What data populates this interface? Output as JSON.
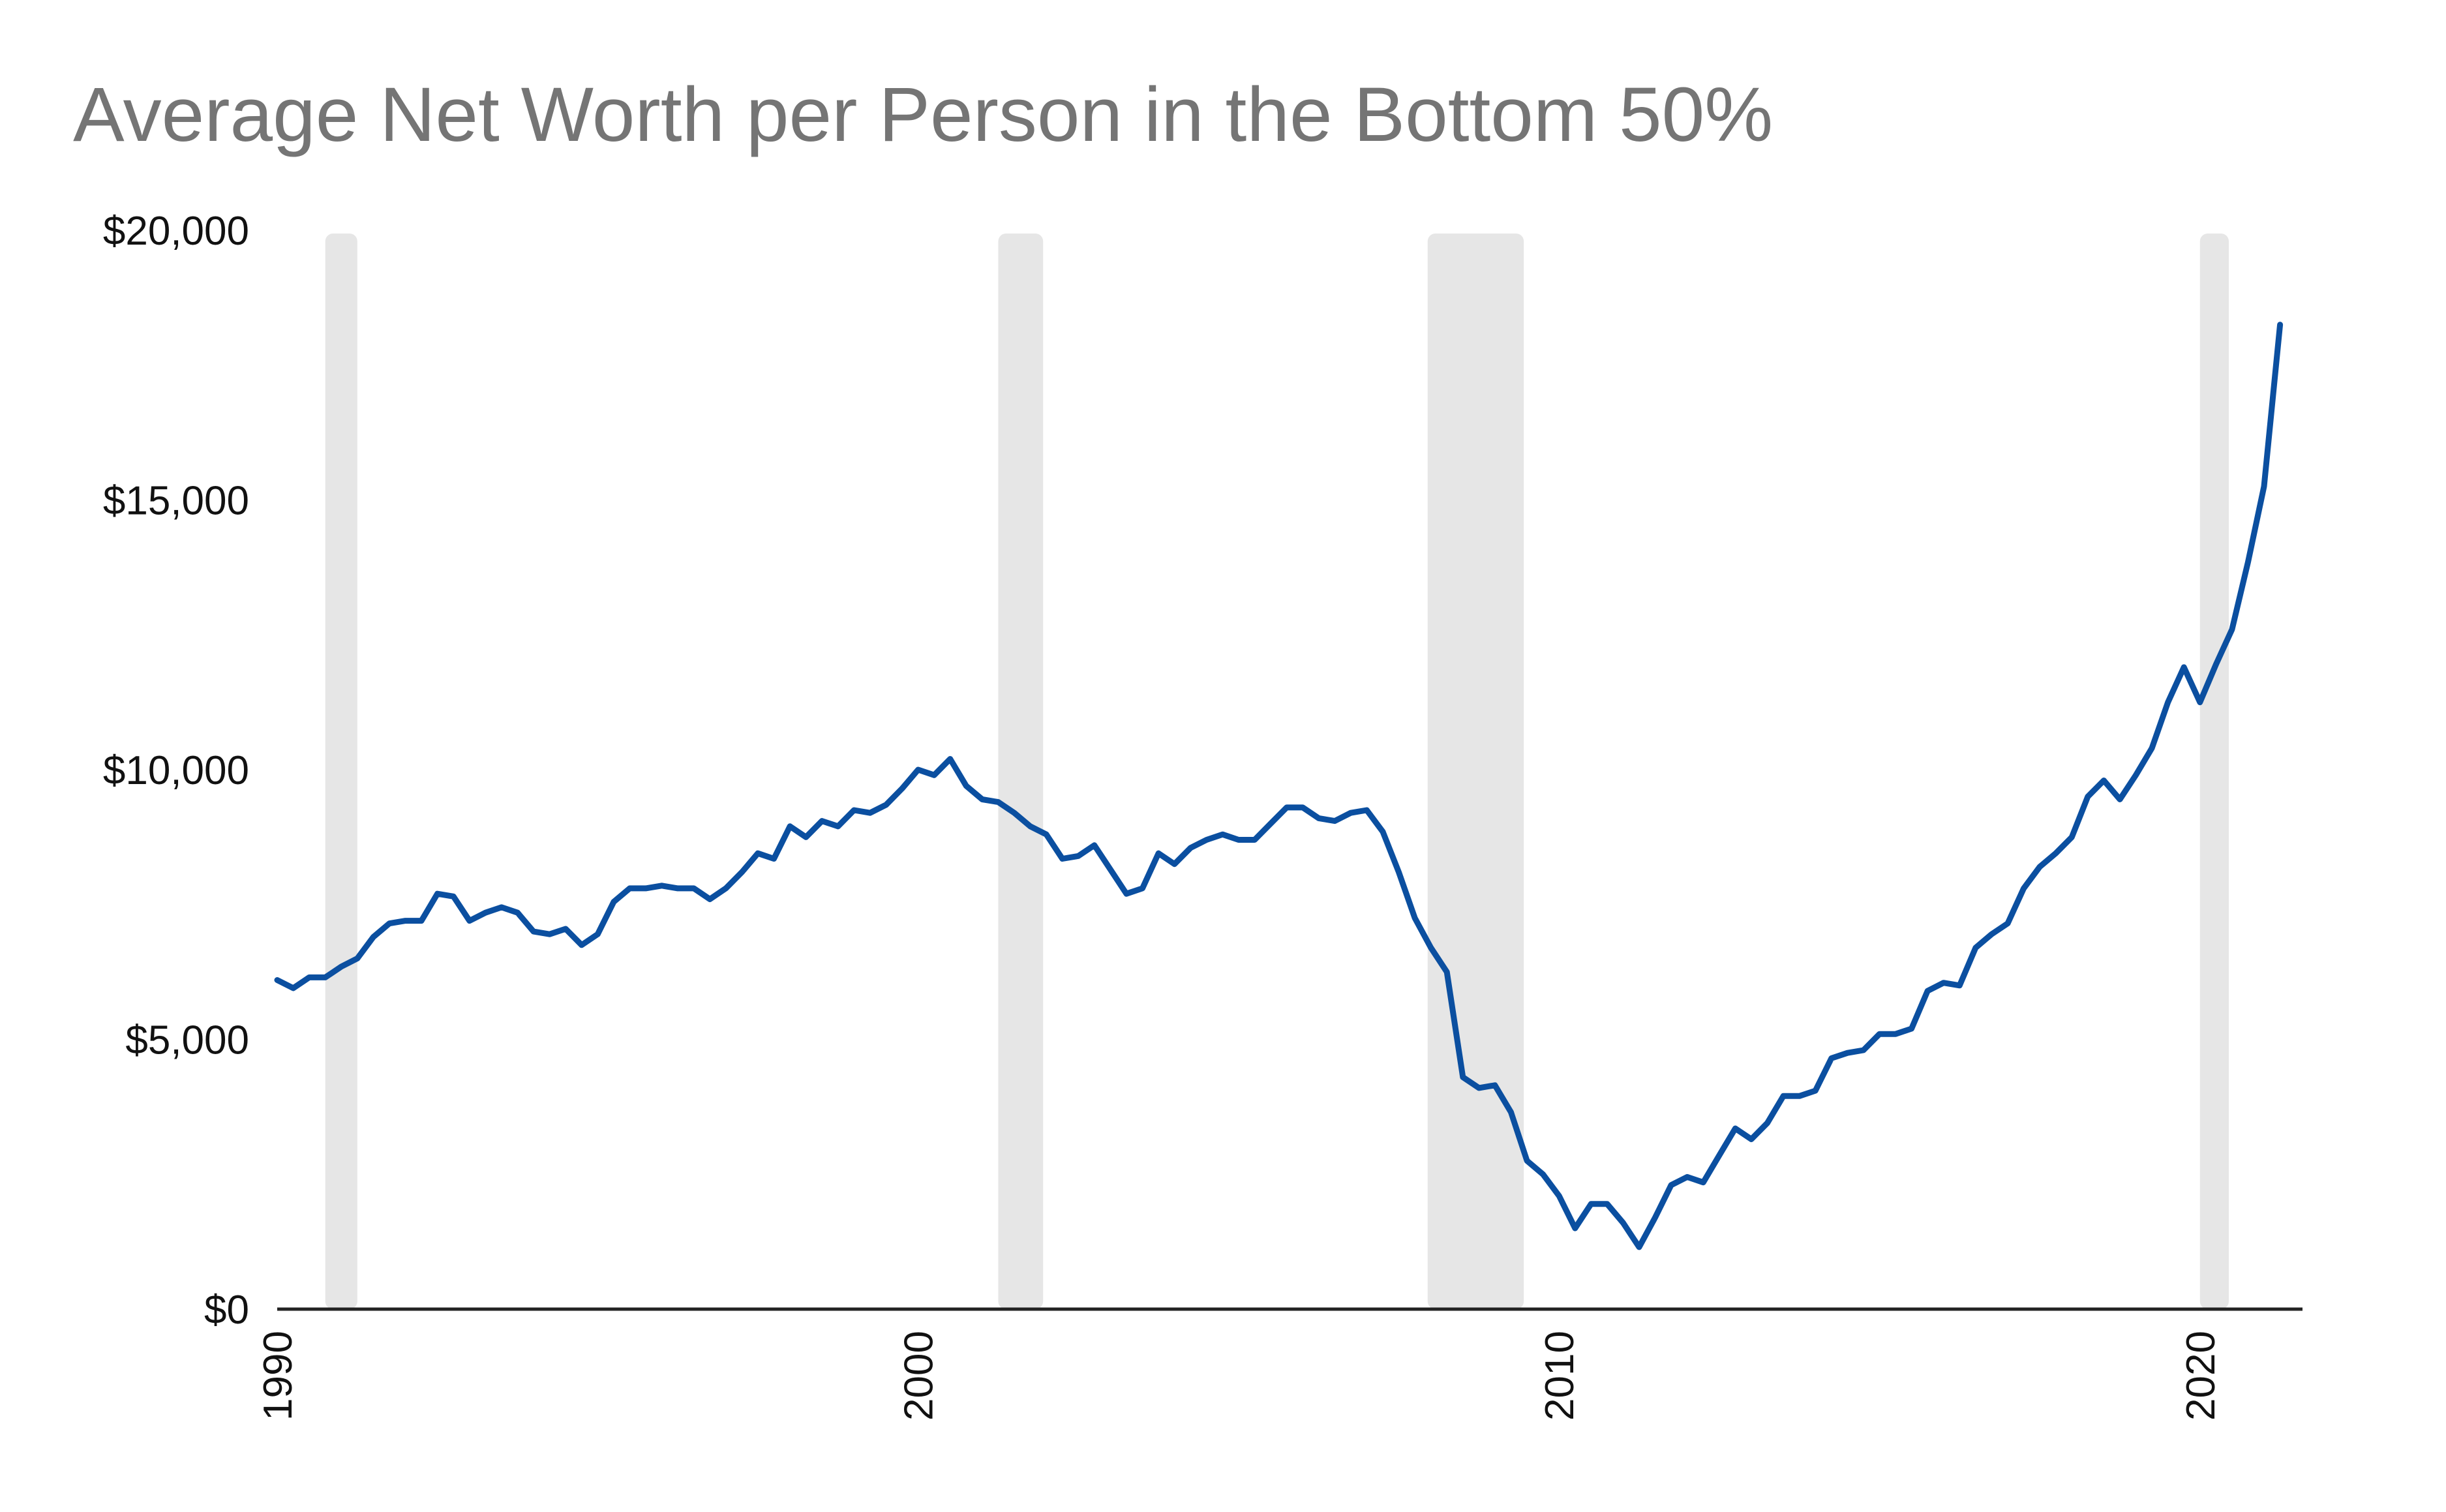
{
  "chart_data": {
    "type": "line",
    "title": "Average Net Worth per Person in the Bottom 50%",
    "xlabel": "",
    "ylabel": "",
    "xlim": [
      1990,
      2021.6
    ],
    "ylim": [
      0,
      20000
    ],
    "grid": false,
    "y_ticks": [
      0,
      5000,
      10000,
      15000,
      20000
    ],
    "y_tick_labels": [
      "$0",
      "$5,000",
      "$10,000",
      "$15,000",
      "$20,000"
    ],
    "x_ticks": [
      1990,
      2000,
      2010,
      2020
    ],
    "x_tick_labels": [
      "1990",
      "2000",
      "2010",
      "2020"
    ],
    "recessions": [
      {
        "start": 1990.75,
        "end": 1991.25
      },
      {
        "start": 2001.25,
        "end": 2001.95
      },
      {
        "start": 2007.95,
        "end": 2009.45
      },
      {
        "start": 2020.0,
        "end": 2020.45
      }
    ],
    "series": [
      {
        "name": "Average Net Worth per Person in the Bottom 50%",
        "color": "#0b4fa0",
        "x": [
          1990.0,
          1990.25,
          1990.5,
          1990.75,
          1991.0,
          1991.25,
          1991.5,
          1991.75,
          1992.0,
          1992.25,
          1992.5,
          1992.75,
          1993.0,
          1993.25,
          1993.5,
          1993.75,
          1994.0,
          1994.25,
          1994.5,
          1994.75,
          1995.0,
          1995.25,
          1995.5,
          1995.75,
          1996.0,
          1996.25,
          1996.5,
          1996.75,
          1997.0,
          1997.25,
          1997.5,
          1997.75,
          1998.0,
          1998.25,
          1998.5,
          1998.75,
          1999.0,
          1999.25,
          1999.5,
          1999.75,
          2000.0,
          2000.25,
          2000.5,
          2000.75,
          2001.0,
          2001.25,
          2001.5,
          2001.75,
          2002.0,
          2002.25,
          2002.5,
          2002.75,
          2003.0,
          2003.25,
          2003.5,
          2003.75,
          2004.0,
          2004.25,
          2004.5,
          2004.75,
          2005.0,
          2005.25,
          2005.5,
          2005.75,
          2006.0,
          2006.25,
          2006.5,
          2006.75,
          2007.0,
          2007.25,
          2007.5,
          2007.75,
          2008.0,
          2008.25,
          2008.5,
          2008.75,
          2009.0,
          2009.25,
          2009.5,
          2009.75,
          2010.0,
          2010.25,
          2010.5,
          2010.75,
          2011.0,
          2011.25,
          2011.5,
          2011.75,
          2012.0,
          2012.25,
          2012.5,
          2012.75,
          2013.0,
          2013.25,
          2013.5,
          2013.75,
          2014.0,
          2014.25,
          2014.5,
          2014.75,
          2015.0,
          2015.25,
          2015.5,
          2015.75,
          2016.0,
          2016.25,
          2016.5,
          2016.75,
          2017.0,
          2017.25,
          2017.5,
          2017.75,
          2018.0,
          2018.25,
          2018.5,
          2018.75,
          2019.0,
          2019.25,
          2019.5,
          2019.75,
          2020.0,
          2020.25,
          2020.5,
          2020.75,
          2021.0,
          2021.25
        ],
        "values": [
          6100,
          5950,
          6150,
          6150,
          6350,
          6500,
          6900,
          7150,
          7200,
          7200,
          7700,
          7650,
          7200,
          7350,
          7450,
          7350,
          7000,
          6950,
          7050,
          6750,
          6950,
          7550,
          7800,
          7800,
          7850,
          7800,
          7800,
          7600,
          7800,
          8100,
          8450,
          8350,
          8950,
          8750,
          9050,
          8950,
          9250,
          9200,
          9350,
          9650,
          10000,
          9900,
          10200,
          9700,
          9450,
          9400,
          9200,
          8950,
          8800,
          8350,
          8400,
          8600,
          8150,
          7700,
          7800,
          8450,
          8250,
          8550,
          8700,
          8800,
          8700,
          8700,
          9000,
          9300,
          9300,
          9100,
          9050,
          9200,
          9250,
          8850,
          8100,
          7250,
          6700,
          6250,
          4300,
          4100,
          4150,
          3650,
          2750,
          2500,
          2100,
          1500,
          1950,
          1950,
          1600,
          1150,
          1700,
          2300,
          2450,
          2350,
          2850,
          3350,
          3150,
          3450,
          3950,
          3950,
          4050,
          4650,
          4750,
          4800,
          5100,
          5100,
          5200,
          5900,
          6050,
          6000,
          6700,
          6950,
          7150,
          7800,
          8200,
          8450,
          8750,
          9500,
          9800,
          9450,
          9900,
          10400,
          11250,
          11900,
          11250,
          11950,
          12600,
          13850,
          15250,
          18250
        ]
      }
    ]
  }
}
